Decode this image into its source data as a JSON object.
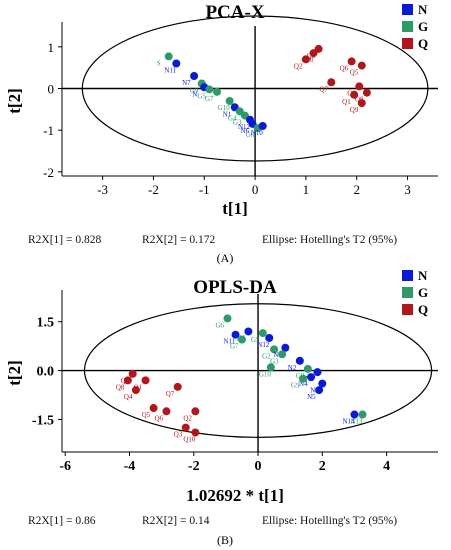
{
  "legend": [
    {
      "label": "N",
      "color": "#0a1bd6"
    },
    {
      "label": "G",
      "color": "#2e9a6a"
    },
    {
      "label": "Q",
      "color": "#b0161c"
    }
  ],
  "chart_data": [
    {
      "type": "scatter",
      "title": "PCA-X",
      "xlabel": "t[1]",
      "ylabel": "t[2]",
      "xlim": [
        -3.8,
        3.6
      ],
      "ylim": [
        -2.1,
        1.5
      ],
      "xticks": [
        -3,
        -2,
        -1,
        0,
        1,
        2,
        3
      ],
      "yticks": [
        -2,
        -1,
        0,
        1
      ],
      "footer": [
        "R2X[1] = 0.828",
        "R2X[2] = 0.172",
        "Ellipse: Hotelling's T2 (95%)"
      ],
      "caption": "(A)",
      "ellipse": {
        "cx": 0,
        "cy": 0,
        "rx": 3.4,
        "ry": 1.74
      },
      "points": [
        {
          "g": "G",
          "label": "S",
          "x": -1.7,
          "y": 0.77
        },
        {
          "g": "N",
          "label": "N11",
          "x": -1.55,
          "y": 0.6
        },
        {
          "g": "N",
          "label": "N7",
          "x": -1.2,
          "y": 0.3
        },
        {
          "g": "G",
          "label": "G9",
          "x": -1.05,
          "y": 0.12
        },
        {
          "g": "N",
          "label": "N",
          "x": -1.0,
          "y": 0.03
        },
        {
          "g": "G",
          "label": "G5",
          "x": -0.9,
          "y": -0.02
        },
        {
          "g": "G",
          "label": "G7",
          "x": -0.75,
          "y": -0.08
        },
        {
          "g": "G",
          "label": "G10",
          "x": -0.5,
          "y": -0.3
        },
        {
          "g": "N",
          "label": "N1",
          "x": -0.4,
          "y": -0.45
        },
        {
          "g": "G",
          "label": "G4",
          "x": -0.3,
          "y": -0.55
        },
        {
          "g": "G",
          "label": "G3",
          "x": -0.2,
          "y": -0.65
        },
        {
          "g": "N",
          "label": "N12",
          "x": -0.1,
          "y": -0.75
        },
        {
          "g": "N",
          "label": "N6",
          "x": -0.05,
          "y": -0.85
        },
        {
          "g": "G",
          "label": "G6",
          "x": 0.05,
          "y": -0.95
        },
        {
          "g": "N",
          "label": "N10",
          "x": 0.15,
          "y": -0.9
        },
        {
          "g": "Q",
          "label": "Q2",
          "x": 1.0,
          "y": 0.7
        },
        {
          "g": "Q",
          "label": "Q3",
          "x": 1.25,
          "y": 0.95
        },
        {
          "g": "Q",
          "label": "Q10",
          "x": 1.15,
          "y": 0.85
        },
        {
          "g": "Q",
          "label": "Q6",
          "x": 1.9,
          "y": 0.65
        },
        {
          "g": "Q",
          "label": "Q5",
          "x": 2.1,
          "y": 0.55
        },
        {
          "g": "Q",
          "label": "Q7",
          "x": 1.5,
          "y": 0.15
        },
        {
          "g": "Q",
          "label": "Q4",
          "x": 2.05,
          "y": 0.05
        },
        {
          "g": "Q",
          "label": "Q8",
          "x": 2.2,
          "y": -0.1
        },
        {
          "g": "Q",
          "label": "Q1",
          "x": 1.95,
          "y": -0.15
        },
        {
          "g": "Q",
          "label": "Q9",
          "x": 2.1,
          "y": -0.35
        }
      ]
    },
    {
      "type": "scatter",
      "title": "OPLS-DA",
      "xlabel": "1.02692 * t[1]",
      "ylabel": "t[2]",
      "xlim": [
        -6.1,
        5.6
      ],
      "ylim": [
        -2.5,
        2.35
      ],
      "xticks": [
        -6,
        -4,
        -2,
        0,
        2,
        4
      ],
      "yticks": [
        -1.5,
        0,
        1.5
      ],
      "footer": [
        "R2X[1] = 0.86",
        "R2X[2] = 0.14",
        "Ellipse: Hotelling's T2 (95%)"
      ],
      "caption": "(B)",
      "ellipse": {
        "cx": 0,
        "cy": 0,
        "rx": 5.4,
        "ry": 2.05
      },
      "points": [
        {
          "g": "G",
          "label": "G6",
          "x": -0.95,
          "y": 1.6
        },
        {
          "g": "N",
          "label": "N6",
          "x": -0.3,
          "y": 1.2
        },
        {
          "g": "N",
          "label": "N11",
          "x": -0.7,
          "y": 1.1
        },
        {
          "g": "G",
          "label": "G7",
          "x": -0.5,
          "y": 0.95
        },
        {
          "g": "G",
          "label": "G5",
          "x": 0.15,
          "y": 1.15
        },
        {
          "g": "N",
          "label": "N12",
          "x": 0.35,
          "y": 1.0
        },
        {
          "g": "G",
          "label": "G2",
          "x": 0.5,
          "y": 0.65
        },
        {
          "g": "N",
          "label": "N1",
          "x": 0.85,
          "y": 0.7
        },
        {
          "g": "G",
          "label": "G3",
          "x": 0.75,
          "y": 0.5
        },
        {
          "g": "G",
          "label": "G10",
          "x": 0.4,
          "y": 0.1
        },
        {
          "g": "N",
          "label": "N2",
          "x": 1.3,
          "y": 0.3
        },
        {
          "g": "G",
          "label": "G8",
          "x": 1.55,
          "y": 0.05
        },
        {
          "g": "N",
          "label": "N3",
          "x": 1.85,
          "y": -0.05
        },
        {
          "g": "N",
          "label": "N4",
          "x": 1.65,
          "y": -0.2
        },
        {
          "g": "G",
          "label": "G9",
          "x": 1.4,
          "y": -0.25
        },
        {
          "g": "N",
          "label": "N8",
          "x": 2.0,
          "y": -0.4
        },
        {
          "g": "N",
          "label": "N5",
          "x": 1.9,
          "y": -0.6
        },
        {
          "g": "N",
          "label": "N14",
          "x": 3.0,
          "y": -1.35
        },
        {
          "g": "G",
          "label": "N13",
          "x": 3.25,
          "y": -1.35
        },
        {
          "g": "Q",
          "label": "Q9",
          "x": -3.9,
          "y": -0.1
        },
        {
          "g": "Q",
          "label": "Q8",
          "x": -4.05,
          "y": -0.3
        },
        {
          "g": "Q",
          "label": "Q1",
          "x": -3.5,
          "y": -0.3
        },
        {
          "g": "Q",
          "label": "Q4",
          "x": -3.8,
          "y": -0.6
        },
        {
          "g": "Q",
          "label": "Q7",
          "x": -2.5,
          "y": -0.5
        },
        {
          "g": "Q",
          "label": "Q5",
          "x": -3.25,
          "y": -1.15
        },
        {
          "g": "Q",
          "label": "Q6",
          "x": -2.85,
          "y": -1.25
        },
        {
          "g": "Q",
          "label": "Q2",
          "x": -1.95,
          "y": -1.25
        },
        {
          "g": "Q",
          "label": "Q3",
          "x": -2.25,
          "y": -1.75
        },
        {
          "g": "Q",
          "label": "Q10",
          "x": -1.95,
          "y": -1.9
        }
      ]
    }
  ]
}
